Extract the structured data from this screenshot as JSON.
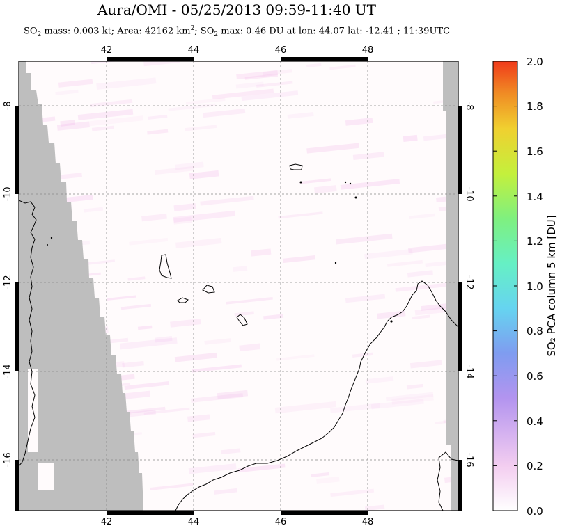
{
  "title": "Aura/OMI - 05/25/2013 09:59-11:40 UT",
  "subtitle": {
    "p1": "SO",
    "p1_sub": "2",
    "p2": " mass: 0.003 kt; Area: 42162 km",
    "p2_sup": "2",
    "p3": "; SO",
    "p3_sub": "2",
    "p4": " max: 0.46 DU at lon: 44.07 lat: -12.41 ; 11:39UTC"
  },
  "map": {
    "lon_ticks": [
      "42",
      "44",
      "46",
      "48"
    ],
    "lat_ticks": [
      "-8",
      "-10",
      "-12",
      "-14",
      "-16"
    ],
    "lon_range": [
      40.0,
      50.0
    ],
    "lat_range": [
      -17.2,
      -6.6
    ],
    "grid": true,
    "land_color": "#bebebe",
    "background_color": "#fffbfc"
  },
  "colorbar": {
    "label": "SO₂ PCA column 5 km [DU]",
    "ticks": [
      "2.0",
      "1.8",
      "1.6",
      "1.4",
      "1.2",
      "1.0",
      "0.8",
      "0.6",
      "0.4",
      "0.2",
      "0.0"
    ],
    "range": [
      0.0,
      2.0
    ],
    "colors": [
      "#ffffff",
      "#f3cdf0",
      "#b394ef",
      "#7f9cf0",
      "#66d4f0",
      "#66f0c4",
      "#7ff07f",
      "#c4f03c",
      "#f0d030",
      "#f08a24",
      "#f03a1a"
    ]
  }
}
